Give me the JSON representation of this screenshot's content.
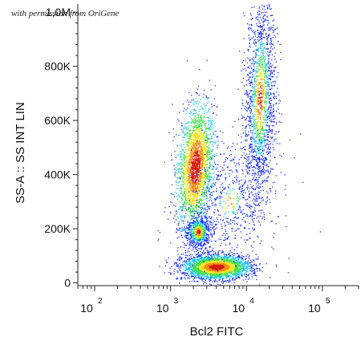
{
  "watermark": "with permission from OriGene",
  "chart_data": {
    "type": "scatter",
    "subtype": "flow-cytometry density dot plot",
    "title": "",
    "xlabel": "Bcl2 FITC",
    "ylabel": "SS-A :: SS INT LIN",
    "x_scale": "log",
    "x_ticks": [
      {
        "value": 100,
        "base": "10",
        "exp": "2"
      },
      {
        "value": 1000,
        "base": "10",
        "exp": "3"
      },
      {
        "value": 10000,
        "base": "10",
        "exp": "4"
      },
      {
        "value": 100000,
        "base": "10",
        "exp": "5"
      }
    ],
    "xlim": [
      60,
      300000
    ],
    "y_scale": "linear",
    "y_ticks": [
      {
        "value": 0,
        "label": "0"
      },
      {
        "value": 200000,
        "label": "200K"
      },
      {
        "value": 400000,
        "label": "400K"
      },
      {
        "value": 600000,
        "label": "600K"
      },
      {
        "value": 800000,
        "label": "800K"
      },
      {
        "value": 1000000,
        "label": "1,0M"
      }
    ],
    "ylim": [
      -10000,
      1030000
    ],
    "color_scale": [
      "#1a2cff",
      "#19c7f0",
      "#3fe04a",
      "#f4e31c",
      "#f58a12",
      "#d61a0c"
    ],
    "populations": [
      {
        "x_center": 2100,
        "y_center": 430000,
        "x_spread_log": 0.11,
        "y_spread": 110000,
        "tilt": 0.28,
        "n": 2600,
        "density": 1.0
      },
      {
        "x_center": 4000,
        "y_center": 60000,
        "x_spread_log": 0.22,
        "y_spread": 22000,
        "tilt": 0.0,
        "n": 2800,
        "density": 0.85
      },
      {
        "x_center": 2300,
        "y_center": 190000,
        "x_spread_log": 0.08,
        "y_spread": 30000,
        "tilt": 0.0,
        "n": 700,
        "density": 0.55
      },
      {
        "x_center": 15000,
        "y_center": 680000,
        "x_spread_log": 0.1,
        "y_spread": 200000,
        "tilt": 0.22,
        "n": 1800,
        "density": 0.45
      },
      {
        "x_center": 6000,
        "y_center": 300000,
        "x_spread_log": 0.3,
        "y_spread": 120000,
        "tilt": 0.35,
        "n": 700,
        "density": 0.2
      }
    ],
    "grid": false,
    "legend": "none"
  }
}
